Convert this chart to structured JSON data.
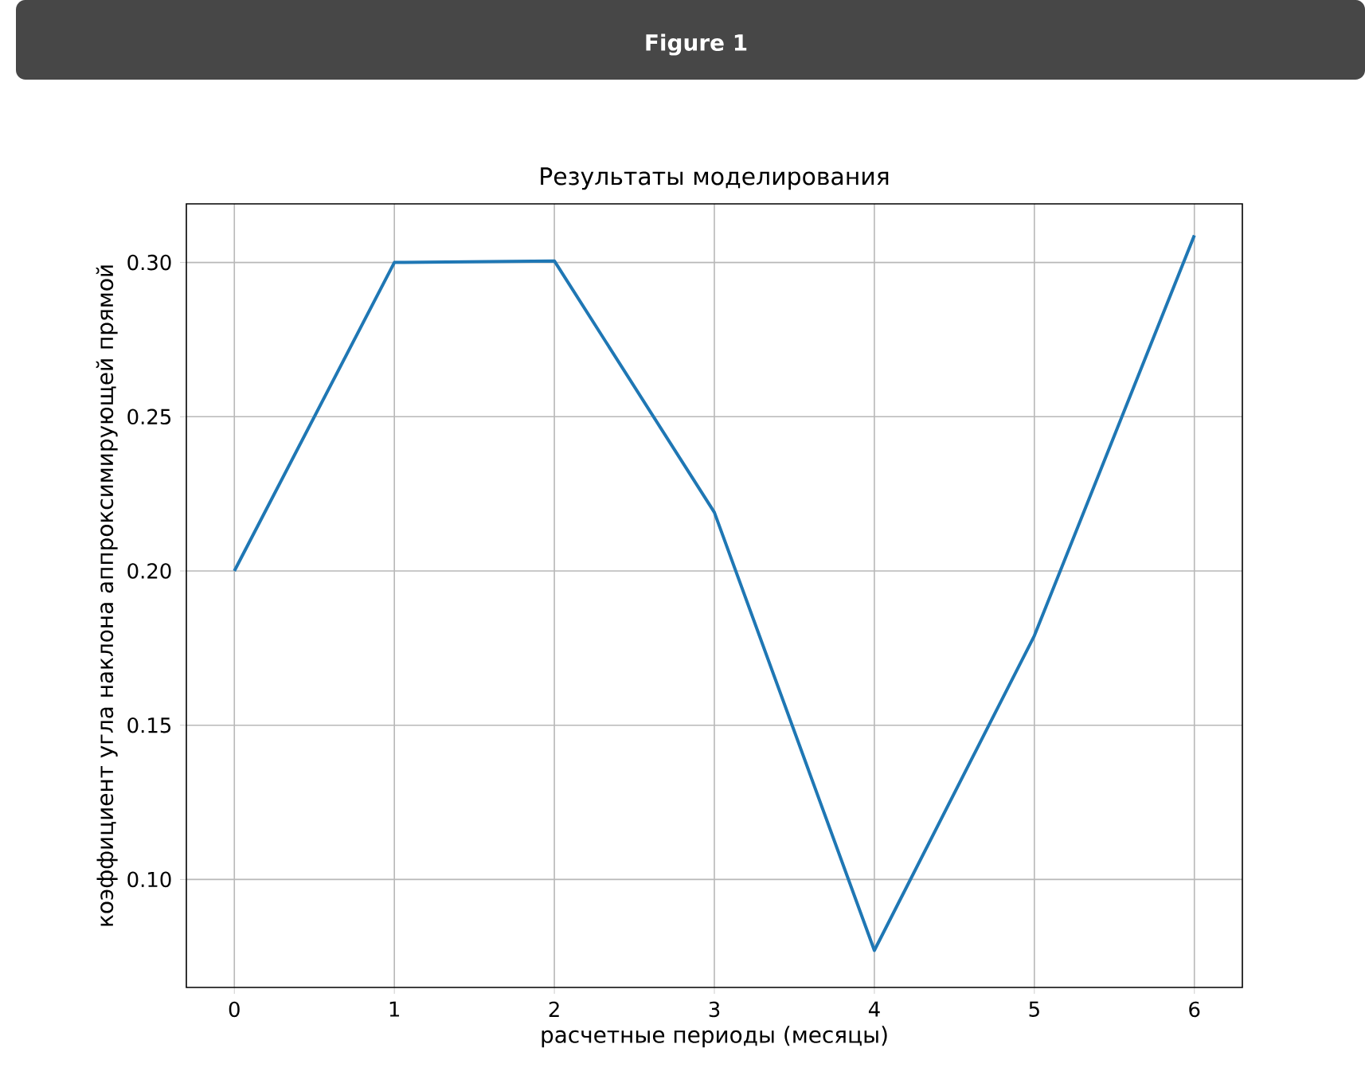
{
  "chart_data": {
    "type": "line",
    "title": "Результаты моделирования",
    "xlabel": "расчетные периоды (месяцы)",
    "ylabel": "коэффициент угла наклона аппроксимирующей прямой",
    "annotations": [
      "Figure 1"
    ],
    "x": [
      0,
      1,
      2,
      3,
      4,
      5,
      6
    ],
    "series": [
      {
        "color": "#1f77b4",
        "values": [
          0.2,
          0.3,
          0.3005,
          0.219,
          0.077,
          0.179,
          0.3088
        ]
      }
    ],
    "xlim": [
      -0.3,
      6.3
    ],
    "ylim": [
      0.065,
      0.319
    ],
    "xticks": [
      0,
      1,
      2,
      3,
      4,
      5,
      6
    ],
    "yticks": [
      {
        "value": 0.1,
        "label": "0.10"
      },
      {
        "value": 0.15,
        "label": "0.15"
      },
      {
        "value": 0.2,
        "label": "0.20"
      },
      {
        "value": 0.25,
        "label": "0.25"
      },
      {
        "value": 0.3,
        "label": "0.30"
      }
    ],
    "grid": true,
    "marker": "none",
    "line_style": "solid"
  }
}
